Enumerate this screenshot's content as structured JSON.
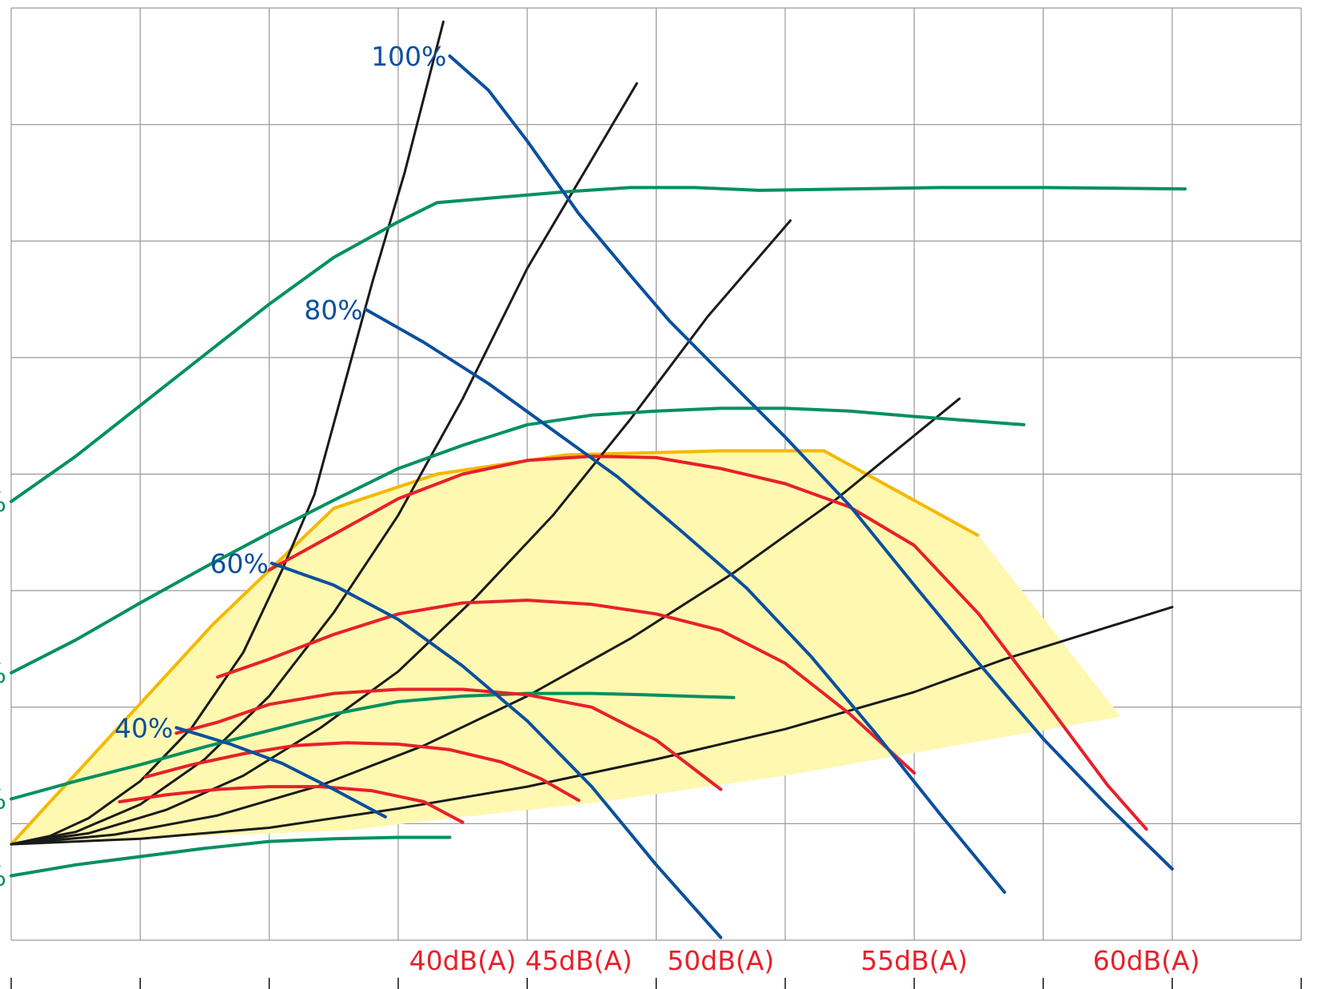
{
  "chart_data": {
    "type": "line",
    "title": "",
    "xlabel": "",
    "ylabel": "",
    "grid": true,
    "colors": {
      "speed": "#0b4f9e",
      "noise": "#e8202a",
      "efficiency": "#009060",
      "system": "#1a1a1a",
      "envelope_fill": "#fff8b0",
      "envelope_edge": "#f5b800",
      "grid": "#9a9a9a"
    },
    "envelope": [
      [
        0,
        0
      ],
      [
        15.6,
        16
      ],
      [
        25,
        24.5
      ],
      [
        33,
        27
      ],
      [
        43,
        28.4
      ],
      [
        55,
        28.7
      ],
      [
        63,
        28.7
      ],
      [
        75,
        22.5
      ],
      [
        86,
        9.3
      ],
      [
        78,
        8
      ],
      [
        60,
        5
      ],
      [
        45,
        3
      ],
      [
        35,
        2
      ],
      [
        26,
        1
      ],
      [
        15,
        0.6
      ],
      [
        8,
        0.4
      ],
      [
        0,
        0
      ]
    ],
    "system_curves": [
      {
        "points": [
          [
            0,
            0
          ],
          [
            3,
            0.6
          ],
          [
            6,
            1.9
          ],
          [
            10,
            4.6
          ],
          [
            14,
            8.5
          ],
          [
            18,
            14
          ],
          [
            21,
            20
          ],
          [
            23.5,
            25.5
          ],
          [
            28,
            41
          ],
          [
            30.5,
            49
          ],
          [
            33.5,
            60
          ]
        ]
      },
      {
        "points": [
          [
            0,
            0
          ],
          [
            5,
            0.9
          ],
          [
            10,
            2.9
          ],
          [
            15,
            6.2
          ],
          [
            20,
            10.8
          ],
          [
            25,
            16.9
          ],
          [
            30,
            24
          ],
          [
            35,
            32.5
          ],
          [
            40,
            42
          ],
          [
            48.5,
            55.5
          ]
        ]
      },
      {
        "points": [
          [
            0,
            0
          ],
          [
            6,
            0.8
          ],
          [
            12,
            2.5
          ],
          [
            18,
            5
          ],
          [
            24,
            8.5
          ],
          [
            30,
            12.6
          ],
          [
            36,
            18
          ],
          [
            42,
            24
          ],
          [
            48,
            31
          ],
          [
            54,
            38.5
          ],
          [
            60.4,
            45.5
          ]
        ]
      },
      {
        "points": [
          [
            0,
            0
          ],
          [
            8,
            0.7
          ],
          [
            16,
            2.1
          ],
          [
            24,
            4.3
          ],
          [
            32,
            7.2
          ],
          [
            40,
            10.8
          ],
          [
            48,
            15
          ],
          [
            56,
            19.8
          ],
          [
            64,
            25.2
          ],
          [
            73.5,
            32.5
          ]
        ]
      },
      {
        "points": [
          [
            0,
            0
          ],
          [
            10,
            0.4
          ],
          [
            20,
            1.2
          ],
          [
            30,
            2.6
          ],
          [
            40,
            4.2
          ],
          [
            50,
            6.2
          ],
          [
            60,
            8.4
          ],
          [
            70,
            11.1
          ],
          [
            77,
            13.5
          ],
          [
            90,
            17.3
          ]
        ]
      }
    ],
    "speed_curves": [
      {
        "label": "100%",
        "points": [
          [
            34,
            57.5
          ],
          [
            37,
            55
          ],
          [
            40,
            51.3
          ],
          [
            44,
            46
          ],
          [
            48,
            41.5
          ],
          [
            51,
            38.2
          ],
          [
            55,
            34.4
          ],
          [
            60,
            29.7
          ],
          [
            65,
            24.7
          ],
          [
            70,
            18.9
          ],
          [
            75,
            13.2
          ],
          [
            80,
            7.7
          ],
          [
            85,
            2.8
          ],
          [
            90,
            -1.8
          ]
        ]
      },
      {
        "label": "80%",
        "points": [
          [
            27.5,
            39
          ],
          [
            32,
            36.6
          ],
          [
            37,
            33.6
          ],
          [
            42,
            30.2
          ],
          [
            47,
            26.8
          ],
          [
            52,
            22.8
          ],
          [
            57,
            18.7
          ],
          [
            62,
            13.7
          ],
          [
            67,
            8.1
          ],
          [
            72,
            2.2
          ],
          [
            77,
            -3.5
          ]
        ]
      },
      {
        "label": "60%",
        "points": [
          [
            20.2,
            20.5
          ],
          [
            25,
            18.9
          ],
          [
            30,
            16.4
          ],
          [
            35,
            13
          ],
          [
            40,
            9
          ],
          [
            45,
            4.2
          ],
          [
            50,
            -1.5
          ],
          [
            55,
            -6.8
          ]
        ]
      },
      {
        "label": "40%",
        "points": [
          [
            12.8,
            8.5
          ],
          [
            17,
            7.3
          ],
          [
            21,
            5.9
          ],
          [
            25,
            4
          ],
          [
            29,
            2
          ]
        ]
      }
    ],
    "noise_curves": [
      {
        "label": "60dB(A)",
        "points": [
          [
            20,
            20
          ],
          [
            25,
            22.6
          ],
          [
            30,
            25.2
          ],
          [
            35,
            27
          ],
          [
            40,
            28
          ],
          [
            45,
            28.3
          ],
          [
            50,
            28.2
          ],
          [
            55,
            27.4
          ],
          [
            60,
            26.3
          ],
          [
            65,
            24.6
          ],
          [
            70,
            21.8
          ],
          [
            75,
            16.8
          ],
          [
            80,
            10.6
          ],
          [
            85,
            4.3
          ],
          [
            88,
            1.1
          ]
        ]
      },
      {
        "label": "55dB(A)",
        "points": [
          [
            16,
            12.2
          ],
          [
            20,
            13.5
          ],
          [
            25,
            15.3
          ],
          [
            30,
            16.8
          ],
          [
            35,
            17.6
          ],
          [
            40,
            17.8
          ],
          [
            45,
            17.5
          ],
          [
            50,
            16.8
          ],
          [
            55,
            15.6
          ],
          [
            60,
            13.2
          ],
          [
            65,
            9.5
          ],
          [
            70,
            5.2
          ]
        ]
      },
      {
        "label": "50dB(A)",
        "points": [
          [
            12.8,
            8.1
          ],
          [
            16,
            8.9
          ],
          [
            20,
            10.2
          ],
          [
            25,
            11
          ],
          [
            30,
            11.3
          ],
          [
            35,
            11.3
          ],
          [
            40,
            10.9
          ],
          [
            45,
            10
          ],
          [
            50,
            7.6
          ],
          [
            55,
            4
          ]
        ]
      },
      {
        "label": "45dB(A)",
        "points": [
          [
            10.4,
            4.9
          ],
          [
            14,
            5.8
          ],
          [
            18,
            6.6
          ],
          [
            22,
            7.2
          ],
          [
            26,
            7.4
          ],
          [
            30,
            7.3
          ],
          [
            34,
            6.9
          ],
          [
            38,
            6
          ],
          [
            41,
            4.8
          ],
          [
            44,
            3.2
          ]
        ]
      },
      {
        "label": "40dB(A)",
        "points": [
          [
            8.4,
            3.1
          ],
          [
            12,
            3.6
          ],
          [
            16,
            4
          ],
          [
            20,
            4.2
          ],
          [
            24,
            4.2
          ],
          [
            28,
            3.9
          ],
          [
            32,
            3.1
          ],
          [
            35,
            1.6
          ]
        ]
      }
    ],
    "efficiency_curves": [
      {
        "label": "%",
        "points": [
          [
            0,
            25
          ],
          [
            5,
            28.3
          ],
          [
            10,
            32
          ],
          [
            15,
            35.7
          ],
          [
            20,
            39.4
          ],
          [
            25,
            42.8
          ],
          [
            30,
            45.4
          ],
          [
            33,
            46.8
          ],
          [
            38,
            47.2
          ],
          [
            43,
            47.6
          ],
          [
            48,
            47.9
          ],
          [
            53,
            47.9
          ],
          [
            58,
            47.7
          ],
          [
            65,
            47.8
          ],
          [
            72,
            47.9
          ],
          [
            80,
            47.9
          ],
          [
            91,
            47.8
          ]
        ]
      },
      {
        "label": "%",
        "points": [
          [
            0,
            12.5
          ],
          [
            5,
            14.9
          ],
          [
            10,
            17.6
          ],
          [
            15,
            20.2
          ],
          [
            20,
            22.7
          ],
          [
            25,
            25.1
          ],
          [
            30,
            27.4
          ],
          [
            35,
            29.1
          ],
          [
            40,
            30.6
          ],
          [
            45,
            31.3
          ],
          [
            50,
            31.6
          ],
          [
            55,
            31.8
          ],
          [
            60,
            31.8
          ],
          [
            65,
            31.6
          ],
          [
            70,
            31.2
          ],
          [
            78.5,
            30.6
          ]
        ]
      },
      {
        "label": "%",
        "points": [
          [
            0,
            3.3
          ],
          [
            5,
            4.6
          ],
          [
            10,
            5.8
          ],
          [
            15,
            7.1
          ],
          [
            20,
            8.3
          ],
          [
            25,
            9.5
          ],
          [
            30,
            10.4
          ],
          [
            35,
            10.8
          ],
          [
            40,
            11
          ],
          [
            45,
            11
          ],
          [
            49,
            10.9
          ],
          [
            56,
            10.7
          ]
        ]
      },
      {
        "label": "%",
        "points": [
          [
            0,
            -2.3
          ],
          [
            5,
            -1.5
          ],
          [
            10,
            -0.9
          ],
          [
            15,
            -0.3
          ],
          [
            20,
            0.2
          ],
          [
            25,
            0.4
          ],
          [
            30,
            0.5
          ],
          [
            34,
            0.5
          ]
        ]
      }
    ],
    "xlim": [
      0,
      100
    ],
    "ylim": [
      -7,
      61
    ]
  }
}
